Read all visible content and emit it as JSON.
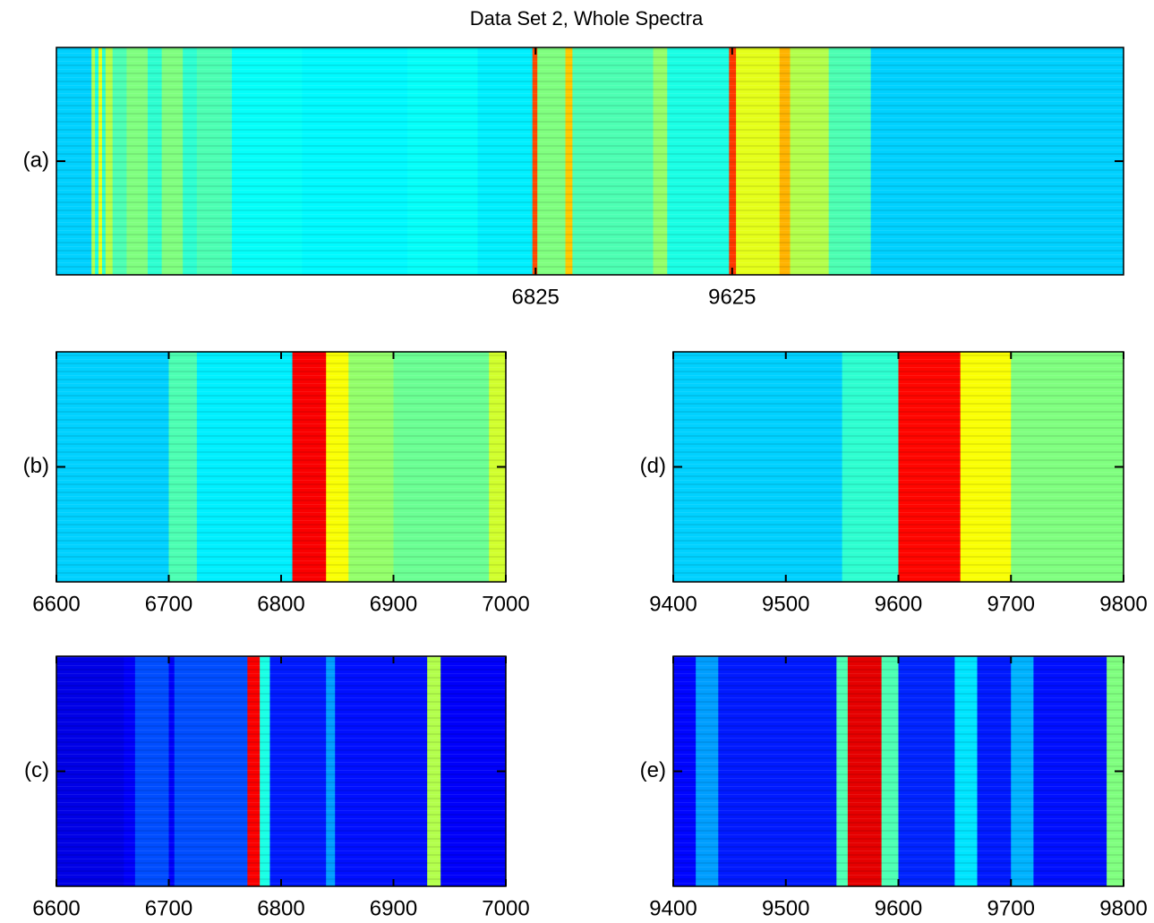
{
  "title": "Data Set 2, Whole Spectra",
  "chart_data": [
    {
      "type": "heatmap",
      "colormap": "jet",
      "clim": [
        0,
        1
      ],
      "x": [
        0,
        500,
        550,
        600,
        650,
        700,
        800,
        1000,
        1300,
        1500,
        1800,
        2000,
        2500,
        3500,
        5000,
        6000,
        6780,
        6850,
        7250,
        7350,
        8500,
        8700,
        9580,
        9680,
        10300,
        10450,
        11000,
        11600
      ],
      "values": [
        0.33,
        0.55,
        0.4,
        0.6,
        0.42,
        0.55,
        0.45,
        0.5,
        0.42,
        0.5,
        0.42,
        0.45,
        0.38,
        0.37,
        0.38,
        0.36,
        0.8,
        0.5,
        0.68,
        0.45,
        0.52,
        0.4,
        0.82,
        0.6,
        0.7,
        0.55,
        0.45,
        0.33
      ],
      "xlim": [
        0,
        15200
      ],
      "xticks": [
        6825,
        9625
      ],
      "ylim": [
        0,
        1
      ],
      "yticks": [
        {
          "value": 0.5,
          "label": "(a)"
        }
      ]
    },
    {
      "type": "heatmap",
      "colormap": "jet",
      "clim": [
        0,
        1
      ],
      "x": [
        6600,
        6700,
        6725,
        6810,
        6840,
        6860,
        6900,
        6985
      ],
      "values": [
        0.33,
        0.45,
        0.36,
        0.88,
        0.62,
        0.52,
        0.48,
        0.58
      ],
      "xlim": [
        6600,
        7000
      ],
      "xticks": [
        6600,
        6700,
        6800,
        6900,
        7000
      ],
      "ylim": [
        0,
        1
      ],
      "yticks": [
        {
          "value": 0.5,
          "label": "(b)"
        }
      ]
    },
    {
      "type": "heatmap",
      "colormap": "jet",
      "clim": [
        0,
        1
      ],
      "x": [
        9400,
        9550,
        9600,
        9655,
        9700
      ],
      "values": [
        0.33,
        0.42,
        0.87,
        0.62,
        0.5
      ],
      "xlim": [
        9400,
        9800
      ],
      "xticks": [
        9400,
        9500,
        9600,
        9700,
        9800
      ],
      "ylim": [
        0,
        1
      ],
      "yticks": [
        {
          "value": 0.5,
          "label": "(d)"
        }
      ]
    },
    {
      "type": "heatmap",
      "colormap": "jet",
      "clim": [
        0,
        1
      ],
      "x": [
        6600,
        6660,
        6670,
        6700,
        6705,
        6770,
        6781,
        6790,
        6840,
        6848,
        6930,
        6942
      ],
      "values": [
        0.1,
        0.12,
        0.2,
        0.12,
        0.2,
        0.88,
        0.4,
        0.15,
        0.28,
        0.14,
        0.55,
        0.12
      ],
      "xlim": [
        6600,
        7000
      ],
      "xticks": [
        6600,
        6700,
        6800,
        6900,
        7000
      ],
      "ylim": [
        0,
        1
      ],
      "yticks": [
        {
          "value": 0.5,
          "label": "(c)"
        }
      ]
    },
    {
      "type": "heatmap",
      "colormap": "jet",
      "clim": [
        0,
        1
      ],
      "x": [
        9400,
        9420,
        9440,
        9545,
        9555,
        9585,
        9600,
        9650,
        9670,
        9700,
        9720,
        9785
      ],
      "values": [
        0.13,
        0.28,
        0.15,
        0.45,
        0.9,
        0.45,
        0.16,
        0.35,
        0.15,
        0.3,
        0.14,
        0.5
      ],
      "xlim": [
        9400,
        9800
      ],
      "xticks": [
        9400,
        9500,
        9600,
        9700,
        9800
      ],
      "ylim": [
        0,
        1
      ],
      "yticks": [
        {
          "value": 0.5,
          "label": "(e)"
        }
      ]
    }
  ]
}
